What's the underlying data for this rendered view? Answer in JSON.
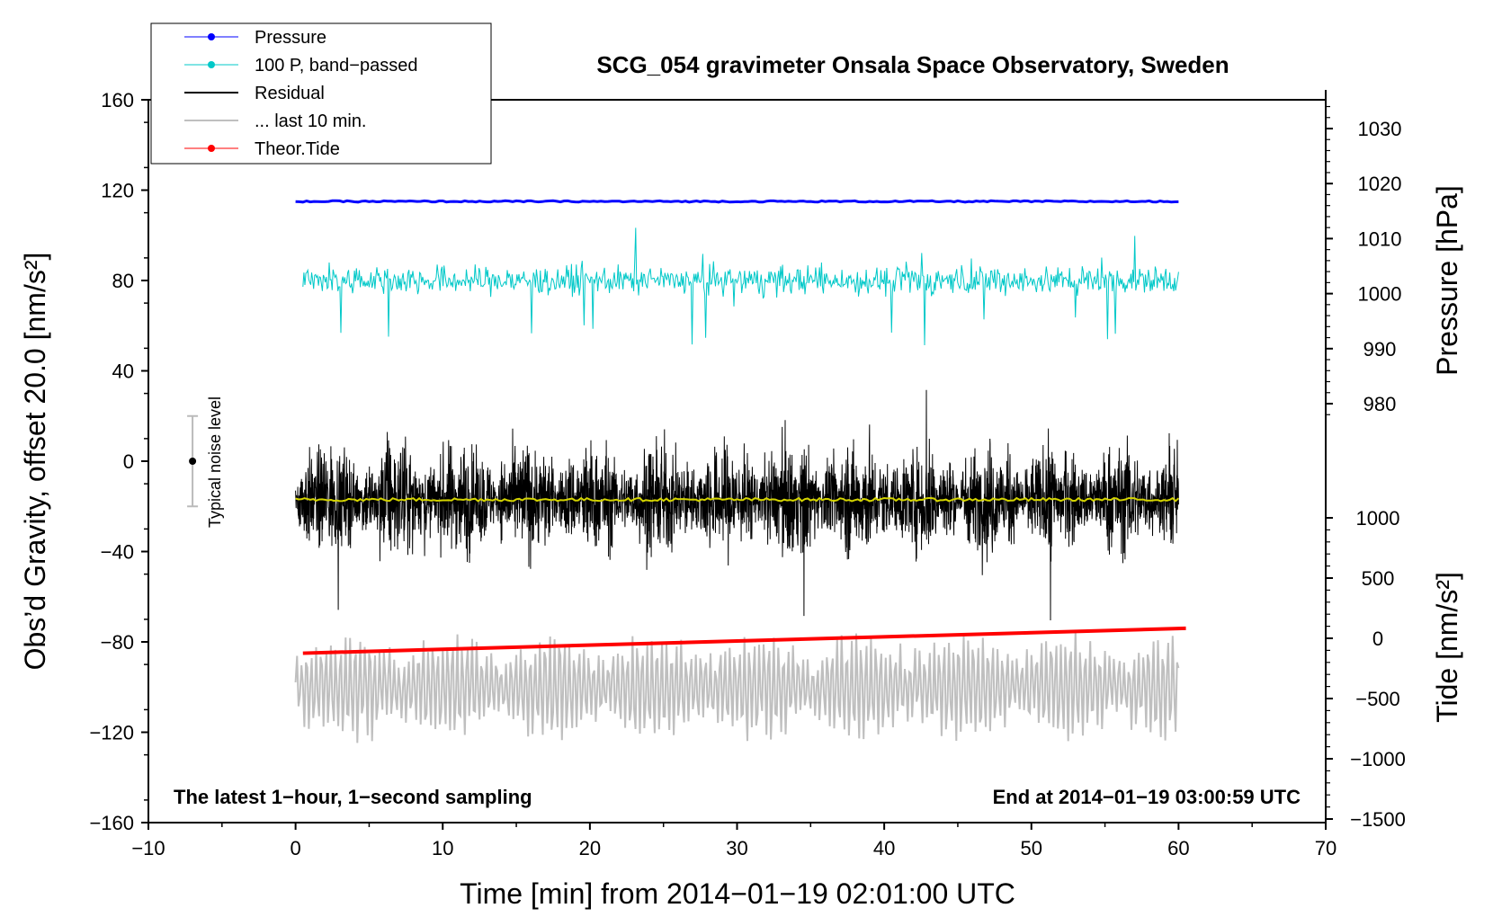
{
  "chart_data": {
    "type": "line",
    "title": "SCG_054 gravimeter Onsala Space Observatory, Sweden",
    "xlabel": "Time [min] from 2014−01−19 02:01:00 UTC",
    "ylabel": "Obs’d Gravity, offset 20.0 [nm/s²]",
    "ylabel_right_pressure": "Pressure [hPa]",
    "ylabel_right_tide": "Tide [nm/s²]",
    "xlim": [
      -10,
      70
    ],
    "ylim": [
      -160,
      160
    ],
    "x_ticks": [
      "−10",
      "0",
      "10",
      "20",
      "30",
      "40",
      "50",
      "60",
      "70"
    ],
    "y_ticks": [
      "160",
      "120",
      "80",
      "40",
      "0",
      "−40",
      "−80",
      "−120",
      "−160"
    ],
    "pressure_ticks": [
      "1030",
      "1020",
      "1010",
      "1000",
      "990",
      "980"
    ],
    "tide_ticks": [
      "1000",
      "500",
      "0",
      "−500",
      "−1000",
      "−1500"
    ],
    "note_left": "The latest 1−hour, 1−second sampling",
    "note_right": "End at 2014−01−19 03:00:59 UTC",
    "noise_label": "Typical noise level",
    "noise_bar": {
      "x": -7,
      "center": 0,
      "low": -20,
      "high": 20
    },
    "legend": [
      {
        "label": "Pressure",
        "color": "#0000ff",
        "marker": true
      },
      {
        "label": "100 P, band−passed",
        "color": "#00c8c8",
        "marker": true
      },
      {
        "label": "Residual",
        "color": "#000000",
        "marker": false
      },
      {
        "label": "... last 10 min.",
        "color": "#bfbfbf",
        "marker": false
      },
      {
        "label": "Theor.Tide",
        "color": "#ff0000",
        "marker": true
      }
    ],
    "series": [
      {
        "name": "Pressure",
        "color": "#0000ff",
        "x_range": [
          0,
          60
        ],
        "level": 115,
        "pressure_hPa": 1016
      },
      {
        "name": "100 P, band−passed",
        "color": "#00c8c8",
        "x_range": [
          0.5,
          60
        ],
        "level": 80
      },
      {
        "name": "Residual",
        "color": "#000000",
        "x_range": [
          0,
          60
        ],
        "level": -17
      },
      {
        "name": "Residual mean",
        "color": "#d4d400",
        "x_range": [
          0,
          60
        ],
        "level": -17
      },
      {
        "name": "... last 10 min.",
        "color": "#bfbfbf",
        "x_range": [
          0,
          60
        ],
        "level": -100
      },
      {
        "name": "Theor.Tide",
        "color": "#ff0000",
        "x": [
          0.5,
          60.5
        ],
        "y": [
          -85,
          -74
        ]
      }
    ]
  }
}
